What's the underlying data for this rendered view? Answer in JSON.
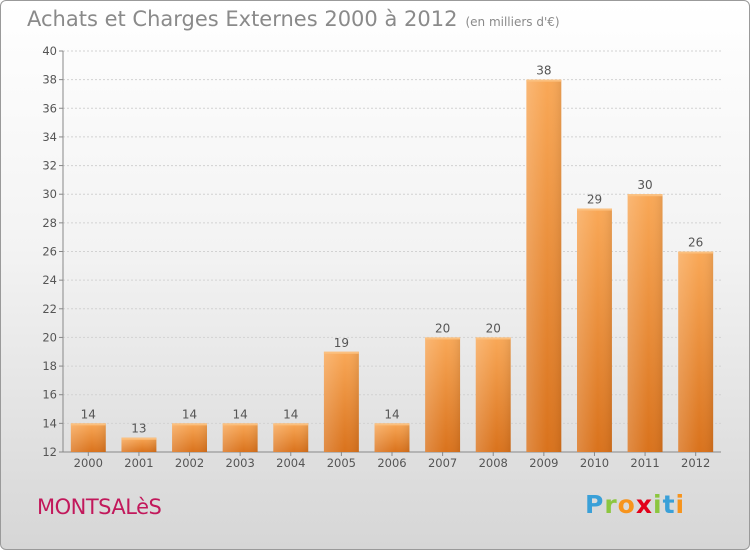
{
  "header": {
    "title": "Achats et Charges Externes 2000 à 2012",
    "subtitle": "(en milliers d'€)"
  },
  "footer": {
    "town": "MONTSALèS",
    "brand_letters": [
      "P",
      "r",
      "o",
      "x",
      "i",
      "t",
      "i"
    ],
    "brand_colors": [
      "#3aa0d8",
      "#8cc63f",
      "#f7941d",
      "#e2001a",
      "#8cc63f",
      "#3aa0d8",
      "#f7941d"
    ]
  },
  "chart_data": {
    "type": "bar",
    "title": "Achats et Charges Externes 2000 à 2012",
    "categories": [
      "2000",
      "2001",
      "2002",
      "2003",
      "2004",
      "2005",
      "2006",
      "2007",
      "2008",
      "2009",
      "2010",
      "2011",
      "2012"
    ],
    "values": [
      14,
      13,
      14,
      14,
      14,
      19,
      14,
      20,
      20,
      38,
      29,
      30,
      26
    ],
    "data_labels": [
      "14",
      "13",
      "14",
      "14",
      "14",
      "19",
      "14",
      "20",
      "20",
      "38",
      "29",
      "30",
      "26"
    ],
    "ylim": [
      12,
      40
    ],
    "yticks": [
      12,
      14,
      16,
      18,
      20,
      22,
      24,
      26,
      28,
      30,
      32,
      34,
      36,
      38,
      40
    ],
    "grid": true,
    "bar_color": "#f0892a"
  }
}
